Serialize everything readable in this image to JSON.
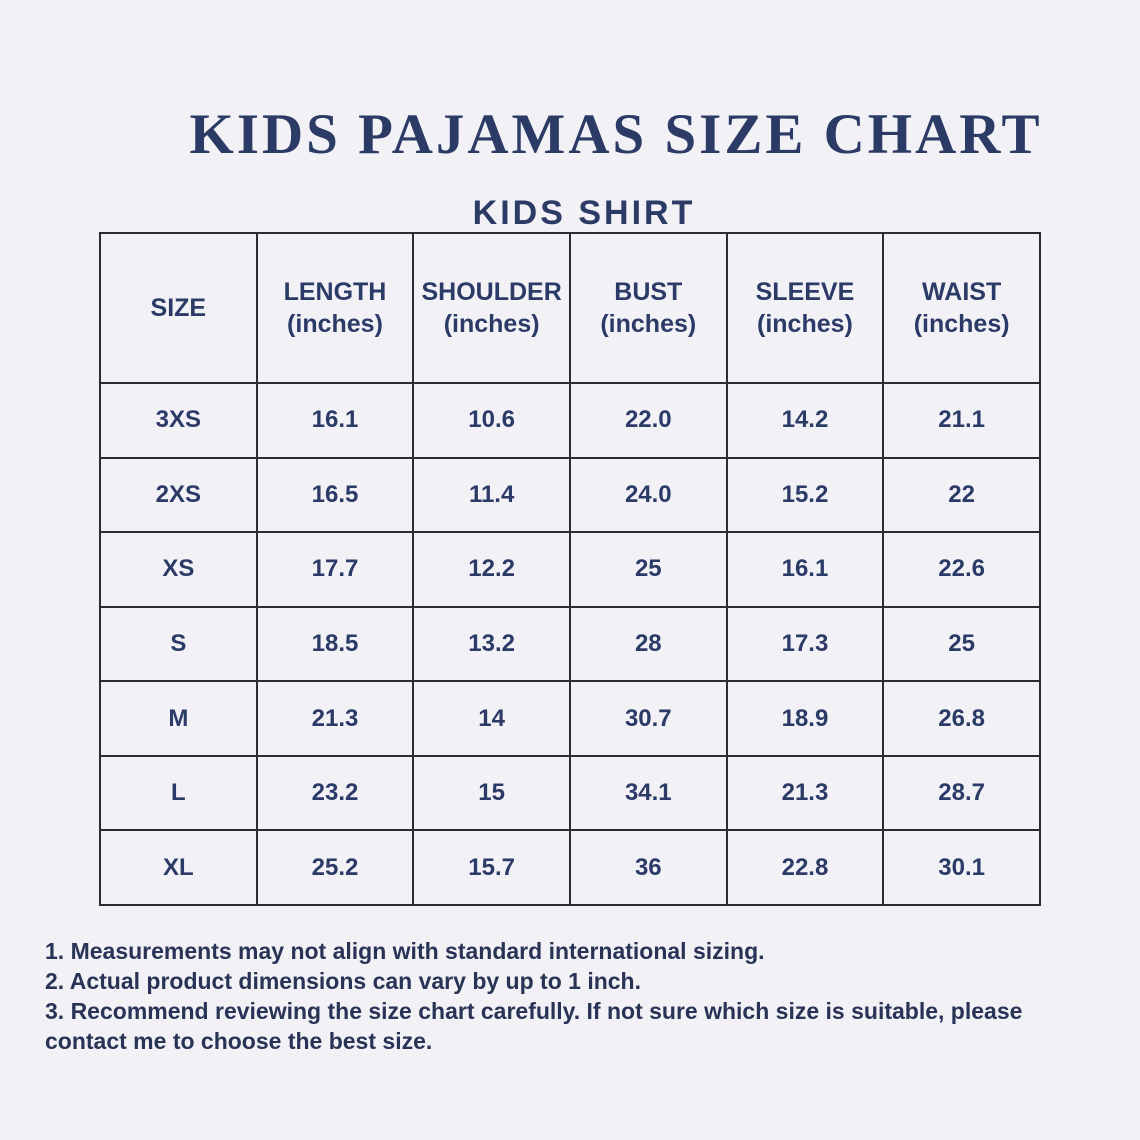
{
  "page": {
    "background_color": "#f1f1f6",
    "text_color": "#2b3a66",
    "border_color": "#2b2b34"
  },
  "title": "KIDS PAJAMAS SIZE CHART",
  "subtitle": "KIDS SHIRT",
  "chart_data": {
    "type": "table",
    "title": "KIDS PAJAMAS SIZE CHART",
    "subtitle": "KIDS SHIRT",
    "unit": "inches",
    "columns": [
      {
        "label": "SIZE",
        "unit": ""
      },
      {
        "label": "LENGTH",
        "unit": "(inches)"
      },
      {
        "label": "SHOULDER",
        "unit": "(inches)"
      },
      {
        "label": "BUST",
        "unit": "(inches)"
      },
      {
        "label": "SLEEVE",
        "unit": "(inches)"
      },
      {
        "label": "WAIST",
        "unit": "(inches)"
      }
    ],
    "rows": [
      {
        "size": "3XS",
        "values": [
          "16.1",
          "10.6",
          "22.0",
          "14.2",
          "21.1"
        ]
      },
      {
        "size": "2XS",
        "values": [
          "16.5",
          "11.4",
          "24.0",
          "15.2",
          "22"
        ]
      },
      {
        "size": "XS",
        "values": [
          "17.7",
          "12.2",
          "25",
          "16.1",
          "22.6"
        ]
      },
      {
        "size": "S",
        "values": [
          "18.5",
          "13.2",
          "28",
          "17.3",
          "25"
        ]
      },
      {
        "size": "M",
        "values": [
          "21.3",
          "14",
          "30.7",
          "18.9",
          "26.8"
        ]
      },
      {
        "size": "L",
        "values": [
          "23.2",
          "15",
          "34.1",
          "21.3",
          "28.7"
        ]
      },
      {
        "size": "XL",
        "values": [
          "25.2",
          "15.7",
          "36",
          "22.8",
          "30.1"
        ]
      }
    ]
  },
  "notes": [
    "1. Measurements may not align with standard international sizing.",
    "2. Actual product dimensions can vary by up to 1 inch.",
    "3. Recommend reviewing the size chart carefully. If not sure which size is suitable, please contact me to choose the best size."
  ]
}
